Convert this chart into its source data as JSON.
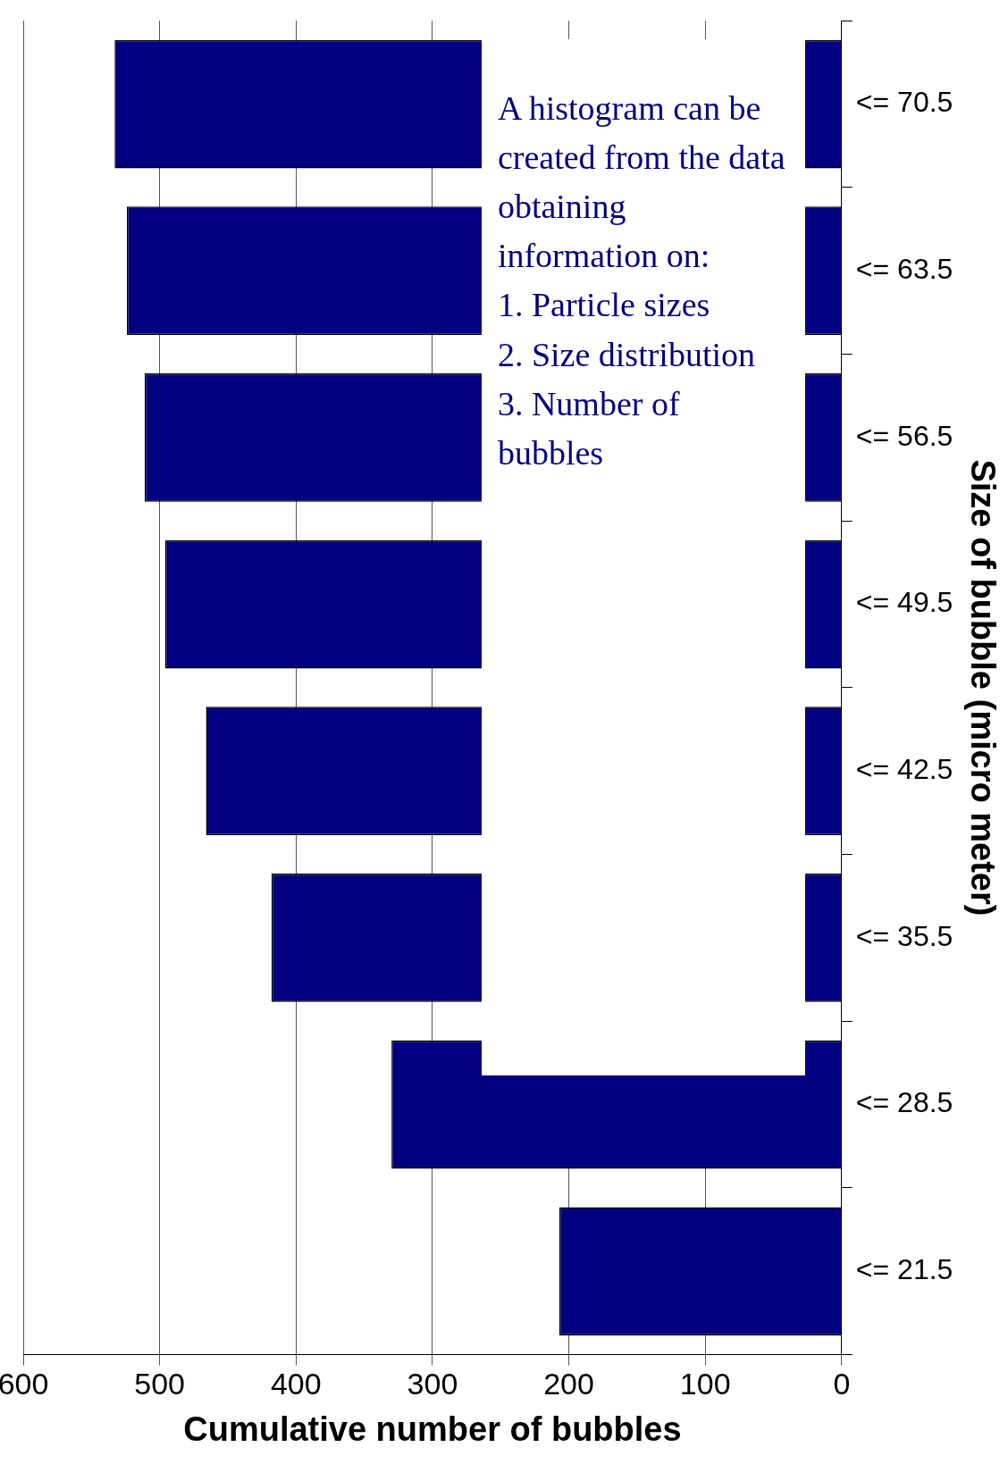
{
  "chart_data": {
    "type": "bar",
    "orientation": "horizontal",
    "xlabel": "Cumulative number of bubbles",
    "ylabel": "Size of bubble (micro meter)",
    "categories": [
      "<= 70.5",
      "<= 63.5",
      "<= 56.5",
      "<= 49.5",
      "<= 42.5",
      "<= 35.5",
      "<= 28.5",
      "<= 21.5"
    ],
    "values": [
      533,
      524,
      511,
      496,
      466,
      418,
      330,
      207
    ],
    "color": "#000080",
    "xlim": [
      600,
      0
    ],
    "xticks": [
      0,
      100,
      200,
      300,
      400,
      500,
      600
    ],
    "grid": "x",
    "legend": false,
    "annotations": [
      "A histogram can be created from the data obtaining information on:",
      "1.  Particle sizes",
      "2.  Size distribution",
      "3.  Number of bubbles"
    ]
  }
}
